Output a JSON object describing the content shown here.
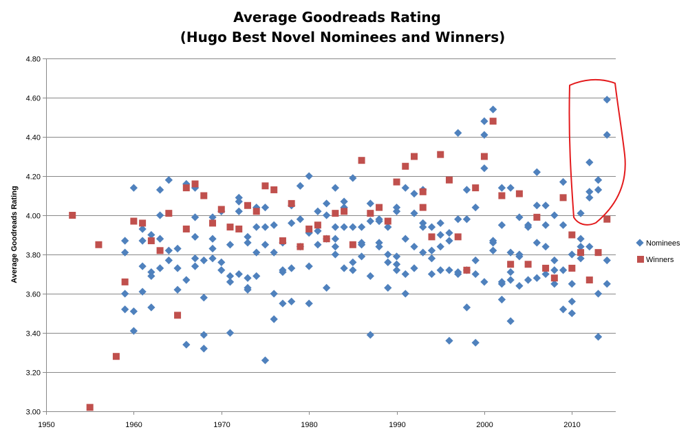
{
  "chart_data": {
    "type": "scatter",
    "title": [
      "Average Goodreads Rating",
      "(Hugo Best Novel Nominees and Winners)"
    ],
    "xlabel": "",
    "ylabel": "Average Goodreads Rating",
    "xlim": [
      1950,
      2015
    ],
    "ylim": [
      3.0,
      4.8
    ],
    "xticks": [
      1950,
      1960,
      1970,
      1980,
      1990,
      2000,
      2010
    ],
    "yticks": [
      "3.00",
      "3.20",
      "3.40",
      "3.60",
      "3.80",
      "4.00",
      "4.20",
      "4.40",
      "4.60",
      "4.80"
    ],
    "grid": "horizontal",
    "legend_position": "right",
    "annotation": "red freehand outline around 2010–2014 nominees",
    "series": [
      {
        "name": "Nominees",
        "marker": "diamond",
        "color": "#4F81BD",
        "points": [
          [
            1959,
            3.87
          ],
          [
            1959,
            3.81
          ],
          [
            1959,
            3.6
          ],
          [
            1959,
            3.52
          ],
          [
            1960,
            4.14
          ],
          [
            1960,
            3.51
          ],
          [
            1960,
            3.41
          ],
          [
            1961,
            3.93
          ],
          [
            1961,
            3.87
          ],
          [
            1961,
            3.74
          ],
          [
            1961,
            3.61
          ],
          [
            1962,
            3.9
          ],
          [
            1962,
            3.71
          ],
          [
            1962,
            3.69
          ],
          [
            1962,
            3.53
          ],
          [
            1963,
            4.13
          ],
          [
            1963,
            4.0
          ],
          [
            1963,
            3.88
          ],
          [
            1963,
            3.73
          ],
          [
            1964,
            4.18
          ],
          [
            1964,
            3.82
          ],
          [
            1964,
            3.77
          ],
          [
            1965,
            3.83
          ],
          [
            1965,
            3.73
          ],
          [
            1965,
            3.62
          ],
          [
            1966,
            4.16
          ],
          [
            1966,
            3.67
          ],
          [
            1966,
            3.34
          ],
          [
            1967,
            4.14
          ],
          [
            1967,
            3.99
          ],
          [
            1967,
            3.89
          ],
          [
            1967,
            3.78
          ],
          [
            1967,
            3.74
          ],
          [
            1968,
            3.77
          ],
          [
            1968,
            3.58
          ],
          [
            1968,
            3.39
          ],
          [
            1968,
            3.32
          ],
          [
            1969,
            3.99
          ],
          [
            1969,
            3.88
          ],
          [
            1969,
            3.83
          ],
          [
            1969,
            3.78
          ],
          [
            1970,
            4.02
          ],
          [
            1970,
            3.76
          ],
          [
            1970,
            3.72
          ],
          [
            1971,
            3.85
          ],
          [
            1971,
            3.69
          ],
          [
            1971,
            3.66
          ],
          [
            1971,
            3.4
          ],
          [
            1972,
            4.09
          ],
          [
            1972,
            4.07
          ],
          [
            1972,
            4.02
          ],
          [
            1972,
            3.7
          ],
          [
            1973,
            3.89
          ],
          [
            1973,
            3.86
          ],
          [
            1973,
            3.68
          ],
          [
            1973,
            3.63
          ],
          [
            1973,
            3.62
          ],
          [
            1974,
            4.04
          ],
          [
            1974,
            3.94
          ],
          [
            1974,
            3.81
          ],
          [
            1974,
            3.69
          ],
          [
            1975,
            4.04
          ],
          [
            1975,
            3.94
          ],
          [
            1975,
            3.85
          ],
          [
            1975,
            3.26
          ],
          [
            1976,
            3.95
          ],
          [
            1976,
            3.81
          ],
          [
            1976,
            3.6
          ],
          [
            1976,
            3.47
          ],
          [
            1977,
            3.86
          ],
          [
            1977,
            3.72
          ],
          [
            1977,
            3.71
          ],
          [
            1977,
            3.55
          ],
          [
            1978,
            4.05
          ],
          [
            1978,
            3.96
          ],
          [
            1978,
            3.73
          ],
          [
            1978,
            3.56
          ],
          [
            1979,
            4.15
          ],
          [
            1979,
            3.98
          ],
          [
            1979,
            3.84
          ],
          [
            1980,
            4.2
          ],
          [
            1980,
            3.91
          ],
          [
            1980,
            3.74
          ],
          [
            1980,
            3.55
          ],
          [
            1981,
            4.02
          ],
          [
            1981,
            3.92
          ],
          [
            1981,
            3.85
          ],
          [
            1982,
            4.06
          ],
          [
            1982,
            4.0
          ],
          [
            1982,
            3.88
          ],
          [
            1982,
            3.63
          ],
          [
            1983,
            4.14
          ],
          [
            1983,
            3.94
          ],
          [
            1983,
            3.88
          ],
          [
            1983,
            3.84
          ],
          [
            1983,
            3.8
          ],
          [
            1984,
            4.07
          ],
          [
            1984,
            4.04
          ],
          [
            1984,
            3.94
          ],
          [
            1984,
            3.73
          ],
          [
            1985,
            4.19
          ],
          [
            1985,
            3.94
          ],
          [
            1985,
            3.76
          ],
          [
            1985,
            3.72
          ],
          [
            1986,
            3.94
          ],
          [
            1986,
            3.86
          ],
          [
            1986,
            3.85
          ],
          [
            1986,
            3.79
          ],
          [
            1987,
            4.06
          ],
          [
            1987,
            3.97
          ],
          [
            1987,
            3.69
          ],
          [
            1987,
            3.39
          ],
          [
            1988,
            3.98
          ],
          [
            1988,
            3.97
          ],
          [
            1988,
            3.86
          ],
          [
            1988,
            3.84
          ],
          [
            1989,
            3.94
          ],
          [
            1989,
            3.8
          ],
          [
            1989,
            3.76
          ],
          [
            1989,
            3.63
          ],
          [
            1990,
            4.04
          ],
          [
            1990,
            4.02
          ],
          [
            1990,
            3.79
          ],
          [
            1990,
            3.75
          ],
          [
            1990,
            3.72
          ],
          [
            1991,
            4.14
          ],
          [
            1991,
            3.88
          ],
          [
            1991,
            3.7
          ],
          [
            1991,
            3.6
          ],
          [
            1992,
            4.11
          ],
          [
            1992,
            4.01
          ],
          [
            1992,
            3.84
          ],
          [
            1992,
            3.73
          ],
          [
            1993,
            4.13
          ],
          [
            1993,
            3.96
          ],
          [
            1993,
            3.94
          ],
          [
            1993,
            3.81
          ],
          [
            1994,
            3.94
          ],
          [
            1994,
            3.82
          ],
          [
            1994,
            3.78
          ],
          [
            1994,
            3.7
          ],
          [
            1995,
            3.96
          ],
          [
            1995,
            3.9
          ],
          [
            1995,
            3.84
          ],
          [
            1995,
            3.72
          ],
          [
            1996,
            3.91
          ],
          [
            1996,
            3.87
          ],
          [
            1996,
            3.72
          ],
          [
            1996,
            3.36
          ],
          [
            1997,
            4.42
          ],
          [
            1997,
            3.98
          ],
          [
            1997,
            3.71
          ],
          [
            1997,
            3.7
          ],
          [
            1998,
            4.13
          ],
          [
            1998,
            3.98
          ],
          [
            1998,
            3.72
          ],
          [
            1998,
            3.53
          ],
          [
            1999,
            4.04
          ],
          [
            1999,
            3.77
          ],
          [
            1999,
            3.7
          ],
          [
            1999,
            3.35
          ],
          [
            2000,
            4.48
          ],
          [
            2000,
            4.41
          ],
          [
            2000,
            4.24
          ],
          [
            2000,
            3.66
          ],
          [
            2001,
            4.54
          ],
          [
            2001,
            3.87
          ],
          [
            2001,
            3.86
          ],
          [
            2001,
            3.82
          ],
          [
            2002,
            4.14
          ],
          [
            2002,
            3.95
          ],
          [
            2002,
            3.66
          ],
          [
            2002,
            3.65
          ],
          [
            2002,
            3.57
          ],
          [
            2003,
            4.14
          ],
          [
            2003,
            3.81
          ],
          [
            2003,
            3.71
          ],
          [
            2003,
            3.67
          ],
          [
            2003,
            3.46
          ],
          [
            2004,
            3.99
          ],
          [
            2004,
            3.8
          ],
          [
            2004,
            3.79
          ],
          [
            2004,
            3.64
          ],
          [
            2005,
            3.95
          ],
          [
            2005,
            3.94
          ],
          [
            2005,
            3.67
          ],
          [
            2006,
            4.22
          ],
          [
            2006,
            4.05
          ],
          [
            2006,
            3.86
          ],
          [
            2006,
            3.68
          ],
          [
            2007,
            4.05
          ],
          [
            2007,
            3.95
          ],
          [
            2007,
            3.84
          ],
          [
            2007,
            3.7
          ],
          [
            2008,
            4.0
          ],
          [
            2008,
            3.77
          ],
          [
            2008,
            3.72
          ],
          [
            2008,
            3.65
          ],
          [
            2009,
            4.17
          ],
          [
            2009,
            3.95
          ],
          [
            2009,
            3.72
          ],
          [
            2009,
            3.52
          ],
          [
            2010,
            3.8
          ],
          [
            2010,
            3.65
          ],
          [
            2010,
            3.56
          ],
          [
            2010,
            3.5
          ],
          [
            2011,
            4.01
          ],
          [
            2011,
            3.88
          ],
          [
            2011,
            3.84
          ],
          [
            2011,
            3.78
          ],
          [
            2012,
            4.27
          ],
          [
            2012,
            4.12
          ],
          [
            2012,
            4.09
          ],
          [
            2012,
            3.84
          ],
          [
            2013,
            4.18
          ],
          [
            2013,
            4.13
          ],
          [
            2013,
            3.6
          ],
          [
            2013,
            3.38
          ],
          [
            2014,
            4.59
          ],
          [
            2014,
            4.41
          ],
          [
            2014,
            3.77
          ],
          [
            2014,
            3.65
          ]
        ]
      },
      {
        "name": "Winners",
        "marker": "square",
        "color": "#C0504D",
        "points": [
          [
            1953,
            4.0
          ],
          [
            1955,
            3.02
          ],
          [
            1956,
            3.85
          ],
          [
            1958,
            3.28
          ],
          [
            1959,
            3.66
          ],
          [
            1960,
            3.97
          ],
          [
            1961,
            3.96
          ],
          [
            1962,
            3.87
          ],
          [
            1963,
            3.82
          ],
          [
            1964,
            4.01
          ],
          [
            1965,
            3.49
          ],
          [
            1966,
            4.14
          ],
          [
            1966,
            3.93
          ],
          [
            1967,
            4.16
          ],
          [
            1968,
            4.1
          ],
          [
            1969,
            3.96
          ],
          [
            1970,
            4.03
          ],
          [
            1971,
            3.94
          ],
          [
            1972,
            3.93
          ],
          [
            1973,
            4.05
          ],
          [
            1974,
            4.02
          ],
          [
            1975,
            4.15
          ],
          [
            1976,
            4.13
          ],
          [
            1977,
            3.87
          ],
          [
            1978,
            4.06
          ],
          [
            1979,
            3.84
          ],
          [
            1980,
            3.93
          ],
          [
            1981,
            3.95
          ],
          [
            1982,
            3.88
          ],
          [
            1983,
            4.01
          ],
          [
            1984,
            4.02
          ],
          [
            1985,
            3.85
          ],
          [
            1986,
            4.28
          ],
          [
            1987,
            4.01
          ],
          [
            1988,
            4.04
          ],
          [
            1989,
            3.97
          ],
          [
            1990,
            4.17
          ],
          [
            1991,
            4.25
          ],
          [
            1992,
            4.3
          ],
          [
            1993,
            4.12
          ],
          [
            1993,
            4.04
          ],
          [
            1994,
            3.89
          ],
          [
            1995,
            4.31
          ],
          [
            1996,
            4.18
          ],
          [
            1997,
            3.89
          ],
          [
            1998,
            3.72
          ],
          [
            1999,
            4.14
          ],
          [
            2000,
            4.3
          ],
          [
            2001,
            4.48
          ],
          [
            2002,
            4.1
          ],
          [
            2003,
            3.75
          ],
          [
            2004,
            4.11
          ],
          [
            2005,
            3.75
          ],
          [
            2006,
            3.99
          ],
          [
            2007,
            3.73
          ],
          [
            2008,
            3.68
          ],
          [
            2009,
            4.09
          ],
          [
            2010,
            3.9
          ],
          [
            2010,
            3.73
          ],
          [
            2011,
            3.81
          ],
          [
            2012,
            3.67
          ],
          [
            2013,
            3.81
          ],
          [
            2014,
            3.98
          ]
        ]
      }
    ]
  }
}
